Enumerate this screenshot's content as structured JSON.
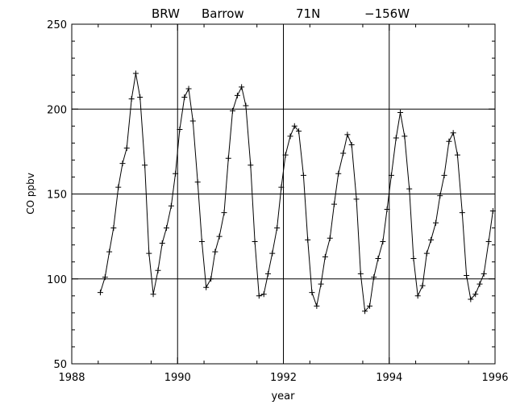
{
  "chart_data": {
    "type": "line",
    "title_parts": [
      "BRW",
      "Barrow",
      "71N",
      "−156W"
    ],
    "xlabel": "year",
    "ylabel": "CO ppbv",
    "xlim": [
      1988,
      1996
    ],
    "ylim": [
      50,
      250
    ],
    "xticks": [
      1988,
      1990,
      1992,
      1994,
      1996
    ],
    "yticks": [
      50,
      100,
      150,
      200,
      250
    ],
    "grid": "major ticks",
    "marker": "plus",
    "series": [
      {
        "x": [
          1988.54,
          1988.63,
          1988.71,
          1988.79,
          1988.88,
          1988.96,
          1989.04,
          1989.13,
          1989.21,
          1989.29,
          1989.38,
          1989.46,
          1989.54,
          1989.63,
          1989.71,
          1989.79,
          1989.88,
          1989.96,
          1990.04,
          1990.13,
          1990.21,
          1990.29,
          1990.38,
          1990.46,
          1990.54,
          1990.63,
          1990.71,
          1990.79,
          1990.88,
          1990.96,
          1991.04,
          1991.13,
          1991.21,
          1991.29,
          1991.38,
          1991.46,
          1991.54,
          1991.63,
          1991.71,
          1991.79,
          1991.88,
          1991.96,
          1992.04,
          1992.13,
          1992.21,
          1992.29,
          1992.38,
          1992.46,
          1992.54,
          1992.63,
          1992.71,
          1992.79,
          1992.88,
          1992.96,
          1993.04,
          1993.13,
          1993.21,
          1993.29,
          1993.38,
          1993.46,
          1993.54,
          1993.63,
          1993.71,
          1993.79,
          1993.88,
          1993.96,
          1994.04,
          1994.13,
          1994.21,
          1994.29,
          1994.38,
          1994.46,
          1994.54,
          1994.63,
          1994.71,
          1994.79,
          1994.88,
          1994.96,
          1995.04,
          1995.13,
          1995.21,
          1995.29,
          1995.38,
          1995.46,
          1995.54,
          1995.63,
          1995.71,
          1995.79,
          1995.88,
          1995.96
        ],
        "y": [
          92,
          101,
          116,
          130,
          154,
          168,
          177,
          206,
          221,
          207,
          167,
          115,
          91,
          105,
          121,
          130,
          143,
          162,
          188,
          207,
          212,
          193,
          157,
          122,
          95,
          100,
          116,
          125,
          139,
          171,
          199,
          208,
          213,
          202,
          167,
          122,
          90,
          91,
          103,
          115,
          130,
          154,
          173,
          184,
          190,
          187,
          161,
          123,
          92,
          84,
          97,
          113,
          124,
          144,
          162,
          174,
          185,
          179,
          147,
          103,
          81,
          84,
          101,
          112,
          122,
          141,
          161,
          183,
          198,
          184,
          153,
          112,
          90,
          96,
          115,
          123,
          133,
          149,
          161,
          181,
          186,
          173,
          139,
          102,
          88,
          91,
          97,
          103,
          122,
          140
        ]
      }
    ]
  }
}
